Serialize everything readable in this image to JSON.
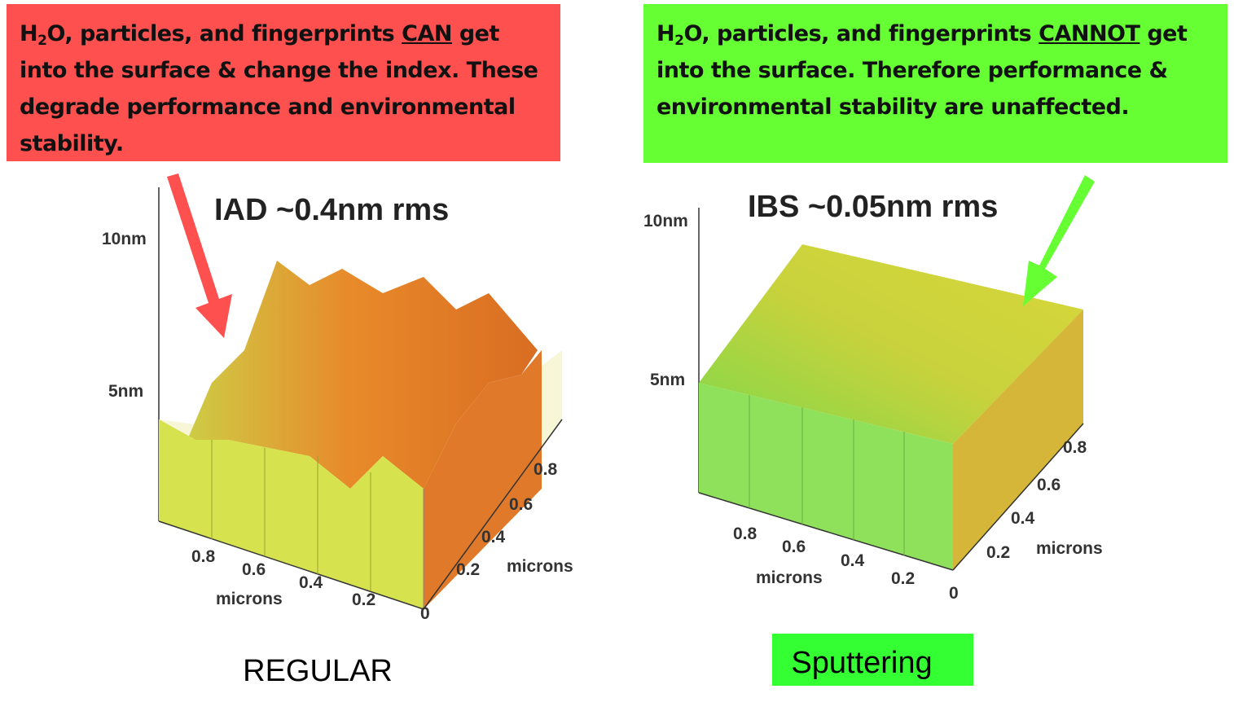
{
  "left": {
    "callout": {
      "prefix": "H",
      "subscript": "2",
      "before": "O, particles, and fingerprints ",
      "emphasis": "CAN",
      "after": " get into the surface & change the index. These degrade performance and environmental stability."
    },
    "title": "IAD ~0.4nm rms",
    "z_labels": [
      "10nm",
      "5nm"
    ],
    "front_labels": [
      "0.8",
      "0.6",
      "0.4",
      "0.2"
    ],
    "side_labels": [
      "0",
      "0.2",
      "0.4",
      "0.6",
      "0.8"
    ],
    "front_axis": "microns",
    "side_axis": "microns",
    "caption": "REGULAR"
  },
  "right": {
    "callout": {
      "prefix": "H",
      "subscript": "2",
      "before": "O, particles, and fingerprints ",
      "emphasis": "CANNOT",
      "after": " get into the surface. Therefore performance & environmental stability are unaffected."
    },
    "title": "IBS ~0.05nm rms",
    "z_labels": [
      "10nm",
      "5nm"
    ],
    "front_labels": [
      "0.8",
      "0.6",
      "0.4",
      "0.2"
    ],
    "side_labels": [
      "0",
      "0.2",
      "0.4",
      "0.6",
      "0.8"
    ],
    "front_axis": "microns",
    "side_axis": "microns",
    "caption": "Sputtering"
  }
}
